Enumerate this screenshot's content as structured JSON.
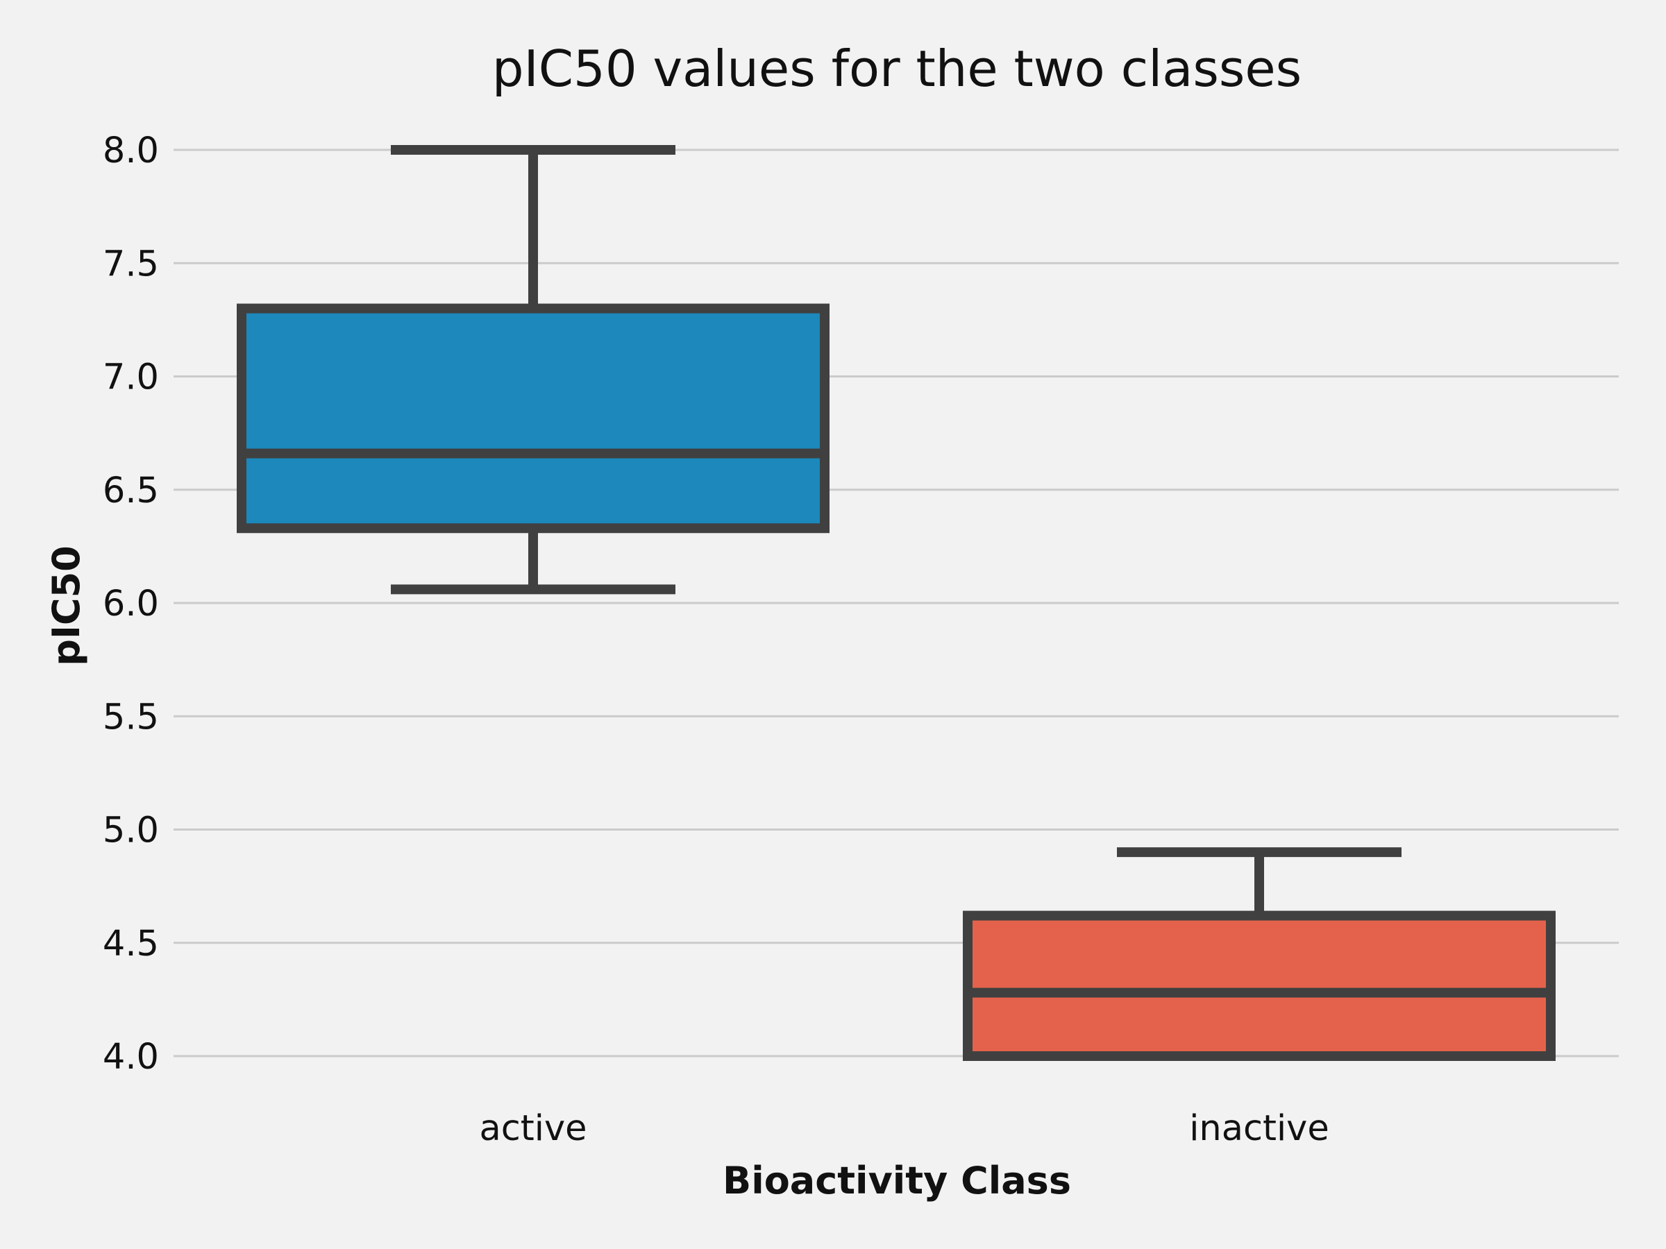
{
  "chart_data": {
    "type": "box",
    "title": "pIC50 values for the two classes",
    "xlabel": "Bioactivity Class",
    "ylabel": "pIC50",
    "ylim": [
      3.85,
      8.05
    ],
    "yticks": [
      "4.0",
      "4.5",
      "5.0",
      "5.5",
      "6.0",
      "6.5",
      "7.0",
      "7.5",
      "8.0"
    ],
    "grid": "horizontal",
    "categories": [
      "active",
      "inactive"
    ],
    "boxes": [
      {
        "category": "active",
        "whisker_low": 6.06,
        "q1": 6.33,
        "median": 6.66,
        "q3": 7.3,
        "whisker_high": 8.0,
        "color": "#1c88bc"
      },
      {
        "category": "inactive",
        "whisker_low": 4.0,
        "q1": 4.0,
        "median": 4.28,
        "q3": 4.62,
        "whisker_high": 4.9,
        "color": "#e4624b"
      }
    ],
    "line_color": "#404040"
  }
}
